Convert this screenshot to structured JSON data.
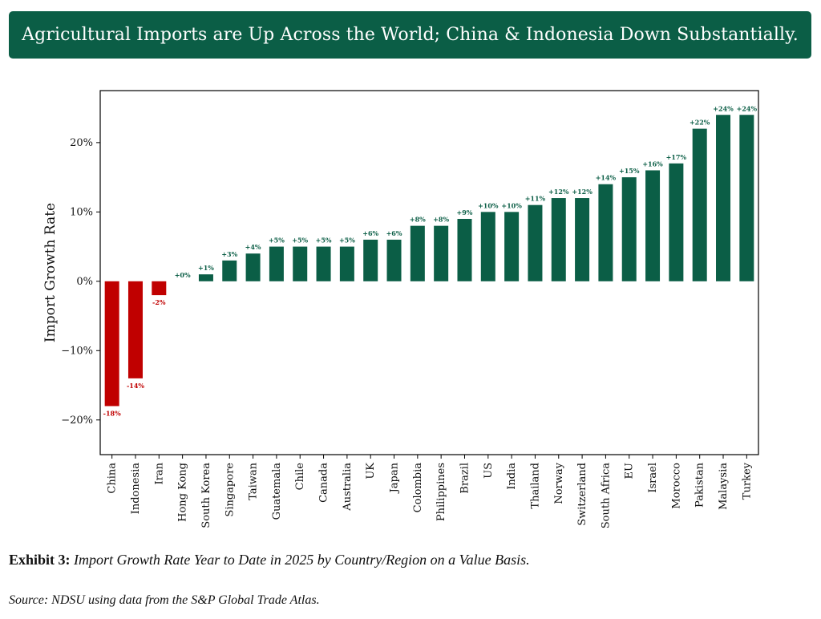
{
  "banner": {
    "title": "Agricultural Imports are Up Across the World; China & Indonesia Down Substantially."
  },
  "caption": {
    "label": "Exhibit 3:",
    "text": "Import Growth Rate Year to Date in 2025 by Country/Region on a Value Basis."
  },
  "source": {
    "text": "Source: NDSU using data from the S&P Global Trade Atlas."
  },
  "colors": {
    "positive": "#0b5e46",
    "negative": "#c00000",
    "banner_bg": "#0b5e46"
  },
  "chart_data": {
    "type": "bar",
    "title": "",
    "xlabel": "",
    "ylabel": "Import Growth Rate",
    "ylim": [
      -25,
      27.5
    ],
    "yticks": [
      -20,
      -10,
      0,
      10,
      20
    ],
    "ytick_labels": [
      "−20%",
      "−10%",
      "0%",
      "10%",
      "20%"
    ],
    "grid": false,
    "categories": [
      "China",
      "Indonesia",
      "Iran",
      "Hong Kong",
      "South Korea",
      "Singapore",
      "Taiwan",
      "Guatemala",
      "Chile",
      "Canada",
      "Australia",
      "UK",
      "Japan",
      "Colombia",
      "Philippines",
      "Brazil",
      "US",
      "India",
      "Thailand",
      "Norway",
      "Switzerland",
      "South Africa",
      "EU",
      "Israel",
      "Morocco",
      "Pakistan",
      "Malaysia",
      "Turkey"
    ],
    "values": [
      -18,
      -14,
      -2,
      0,
      1,
      3,
      4,
      5,
      5,
      5,
      5,
      6,
      6,
      8,
      8,
      9,
      10,
      10,
      11,
      12,
      12,
      14,
      15,
      16,
      17,
      22,
      24,
      24
    ],
    "data_labels": [
      "-18%",
      "-14%",
      "-2%",
      "+0%",
      "+1%",
      "+3%",
      "+4%",
      "+5%",
      "+5%",
      "+5%",
      "+5%",
      "+6%",
      "+6%",
      "+8%",
      "+8%",
      "+9%",
      "+10%",
      "+10%",
      "+11%",
      "+12%",
      "+12%",
      "+14%",
      "+15%",
      "+16%",
      "+17%",
      "+22%",
      "+24%",
      "+24%"
    ]
  }
}
